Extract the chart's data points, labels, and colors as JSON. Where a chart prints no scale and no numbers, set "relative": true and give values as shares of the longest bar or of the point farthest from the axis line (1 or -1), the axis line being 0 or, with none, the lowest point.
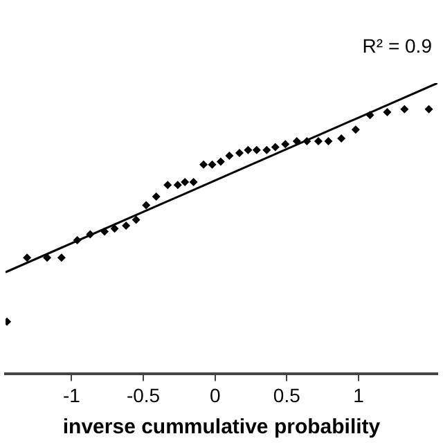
{
  "chart_data": {
    "type": "scatter",
    "relative": true,
    "xlabel": "inverse cummulative probability",
    "xlim": [
      -1.46,
      1.55
    ],
    "xticks": [
      -1,
      -0.5,
      0,
      0.5,
      1
    ],
    "grid": false,
    "legend": false,
    "marker": "diamond",
    "annotations": [
      "R² = 0.9"
    ],
    "series": [
      {
        "color": "#000000",
        "x": [
          -1.45,
          -1.31,
          -1.17,
          -1.07,
          -0.96,
          -0.87,
          -0.77,
          -0.7,
          -0.62,
          -0.55,
          -0.48,
          -0.41,
          -0.33,
          -0.26,
          -0.21,
          -0.15,
          -0.08,
          -0.02,
          0.04,
          0.1,
          0.17,
          0.23,
          0.29,
          0.36,
          0.42,
          0.49,
          0.57,
          0.64,
          0.72,
          0.79,
          0.88,
          0.98,
          1.08,
          1.2,
          1.32,
          1.49
        ],
        "values": [
          0.18,
          0.4,
          0.4,
          0.4,
          0.46,
          0.48,
          0.49,
          0.5,
          0.51,
          0.53,
          0.58,
          0.61,
          0.65,
          0.65,
          0.66,
          0.66,
          0.72,
          0.72,
          0.73,
          0.75,
          0.76,
          0.77,
          0.77,
          0.77,
          0.78,
          0.79,
          0.8,
          0.8,
          0.8,
          0.8,
          0.81,
          0.84,
          0.89,
          0.9,
          0.91,
          0.91
        ]
      },
      {
        "type": "line",
        "color": "#000000",
        "line_style": "solid",
        "marker": "none",
        "x": [
          -1.46,
          1.55
        ],
        "values": [
          0.35,
          1.0
        ]
      }
    ]
  }
}
